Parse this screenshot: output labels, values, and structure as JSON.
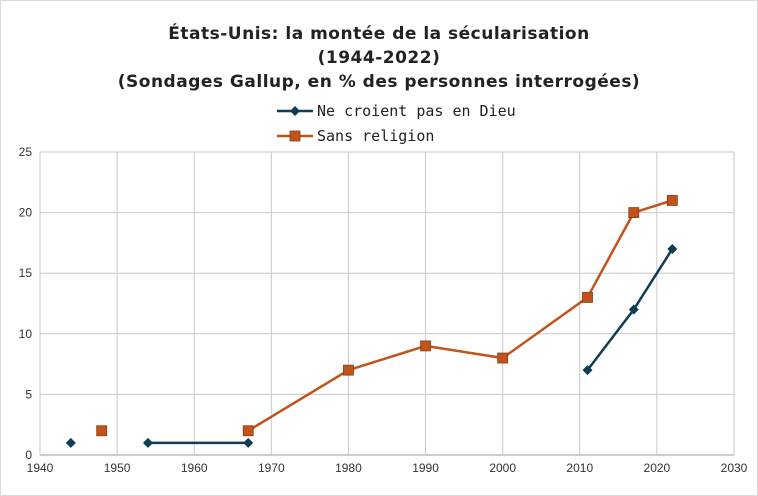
{
  "chart_data": {
    "type": "line",
    "title_lines": [
      "États-Unis: la montée de la sécularisation",
      "(1944-2022)",
      "(Sondages Gallup, en % des personnes interrogées)"
    ],
    "xlabel": "",
    "ylabel": "",
    "xlim": [
      1940,
      2030
    ],
    "ylim": [
      0,
      25
    ],
    "xticks": [
      1940,
      1950,
      1960,
      1970,
      1980,
      1990,
      2000,
      2010,
      2020,
      2030
    ],
    "yticks": [
      0,
      5,
      10,
      15,
      20,
      25
    ],
    "grid": true,
    "legend_position": "top-center",
    "series": [
      {
        "name": "Ne croient pas en Dieu",
        "color": "#0e3d55",
        "marker": "diamond",
        "segments": [
          [
            [
              1944,
              1
            ]
          ],
          [
            [
              1954,
              1
            ],
            [
              1967,
              1
            ]
          ],
          [
            [
              2011,
              7
            ],
            [
              2017,
              12
            ],
            [
              2022,
              17
            ]
          ]
        ]
      },
      {
        "name": "Sans religion",
        "color": "#c0541c",
        "marker": "square",
        "segments": [
          [
            [
              1948,
              2
            ]
          ],
          [
            [
              1967,
              2
            ],
            [
              1980,
              7
            ],
            [
              1990,
              9
            ],
            [
              2000,
              8
            ],
            [
              2011,
              13
            ],
            [
              2017,
              20
            ],
            [
              2022,
              21
            ]
          ]
        ]
      }
    ]
  }
}
